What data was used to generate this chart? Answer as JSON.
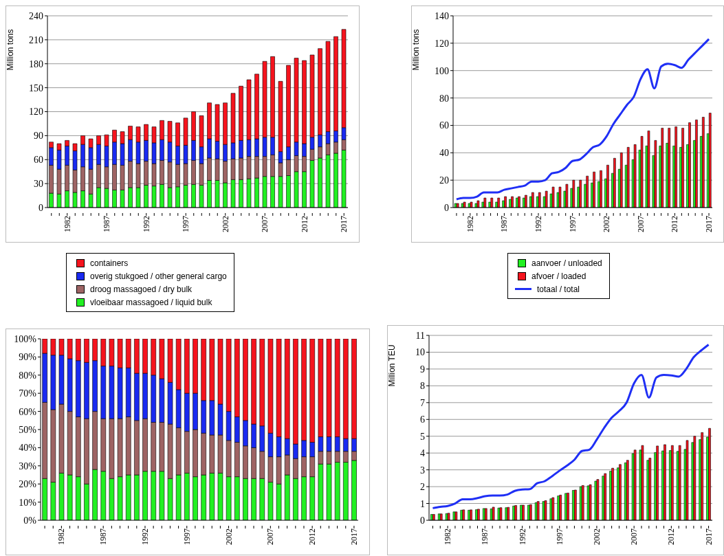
{
  "chart_data": [
    {
      "type": "bar",
      "stacked": true,
      "ylabel": "Million tons",
      "grid": "y",
      "legend": "bottom",
      "categories": [
        null,
        null,
        "1982",
        null,
        null,
        null,
        null,
        "1987",
        null,
        null,
        null,
        null,
        "1992",
        null,
        null,
        null,
        null,
        "1997",
        null,
        null,
        null,
        null,
        "2002",
        null,
        null,
        null,
        null,
        "2007",
        null,
        null,
        null,
        null,
        "2012",
        null,
        null,
        null,
        null,
        "2017"
      ],
      "ylim": [
        0,
        240
      ],
      "yticks": [
        0,
        30,
        60,
        90,
        120,
        150,
        180,
        210,
        240
      ],
      "series": [
        {
          "name": "vloeibaar massagoed / liquid bulk",
          "color": "#22f022",
          "values": [
            18,
            17,
            21,
            19,
            21,
            17,
            25,
            24,
            22,
            22,
            25,
            25,
            28,
            27,
            29,
            25,
            26,
            28,
            29,
            28,
            34,
            34,
            31,
            35,
            35,
            36,
            37,
            39,
            39,
            39,
            40,
            45,
            45,
            59,
            62,
            66,
            68,
            72
          ]
        },
        {
          "name": "droog massagoed / dry bulk",
          "color": "#9e6464",
          "values": [
            35,
            31,
            32,
            28,
            30,
            31,
            29,
            27,
            32,
            31,
            33,
            30,
            30,
            28,
            30,
            32,
            28,
            27,
            30,
            27,
            28,
            27,
            27,
            26,
            27,
            28,
            27,
            25,
            27,
            17,
            20,
            20,
            19,
            14,
            14,
            14,
            14,
            13
          ]
        },
        {
          "name": "overig stukgoed / other general cargo",
          "color": "#1a2af0",
          "values": [
            22,
            24,
            24,
            24,
            28,
            27,
            25,
            26,
            28,
            27,
            27,
            27,
            26,
            26,
            26,
            25,
            23,
            23,
            25,
            21,
            24,
            22,
            21,
            20,
            22,
            21,
            22,
            24,
            22,
            14,
            16,
            17,
            16,
            15,
            15,
            15,
            14,
            15
          ]
        },
        {
          "name": "containers",
          "color": "#f5141e",
          "values": [
            7,
            8,
            7,
            9,
            11,
            11,
            11,
            14,
            15,
            15,
            17,
            19,
            20,
            20,
            24,
            26,
            29,
            34,
            36,
            39,
            45,
            46,
            52,
            62,
            68,
            75,
            81,
            95,
            101,
            88,
            102,
            105,
            104,
            103,
            108,
            113,
            118,
            123
          ]
        }
      ]
    },
    {
      "type": "bar",
      "ylabel": "Million tons",
      "grid": "y",
      "legend": "bottom",
      "marker": "none",
      "categories": [
        null,
        null,
        "1982",
        null,
        null,
        null,
        null,
        "1987",
        null,
        null,
        null,
        null,
        "1992",
        null,
        null,
        null,
        null,
        "1997",
        null,
        null,
        null,
        null,
        "2002",
        null,
        null,
        null,
        null,
        "2007",
        null,
        null,
        null,
        null,
        "2012",
        null,
        null,
        null,
        null,
        "2017"
      ],
      "ylim": [
        0,
        140
      ],
      "yticks": [
        0,
        20,
        40,
        60,
        80,
        100,
        120,
        140
      ],
      "series": [
        {
          "name": "aanvoer / unloaded",
          "color": "#22f022",
          "values": [
            3,
            3,
            3,
            3,
            4,
            4,
            4,
            5,
            6,
            7,
            7,
            8,
            8,
            8,
            10,
            11,
            12,
            14,
            15,
            17,
            18,
            19,
            21,
            25,
            28,
            31,
            35,
            42,
            45,
            38,
            45,
            47,
            45,
            44,
            46,
            49,
            52,
            54
          ]
        },
        {
          "name": "afvoer / loaded",
          "color": "#f5141e",
          "values": [
            3,
            4,
            4,
            5,
            7,
            7,
            7,
            8,
            8,
            8,
            9,
            11,
            11,
            12,
            15,
            15,
            17,
            20,
            20,
            23,
            26,
            27,
            31,
            36,
            40,
            44,
            46,
            52,
            56,
            49,
            58,
            58,
            59,
            58,
            62,
            64,
            66,
            69
          ]
        },
        {
          "name": "totaal / total",
          "type": "line",
          "color": "#1f2ff5",
          "values": [
            6,
            7,
            7,
            8,
            11,
            11,
            11,
            13,
            14,
            15,
            16,
            19,
            19,
            20,
            25,
            26,
            29,
            34,
            35,
            39,
            44,
            46,
            52,
            61,
            68,
            75,
            81,
            94,
            101,
            87,
            103,
            105,
            104,
            102,
            108,
            113,
            118,
            123
          ]
        }
      ]
    },
    {
      "type": "bar",
      "stacked": true,
      "categories": [
        null,
        null,
        "1982",
        null,
        null,
        null,
        null,
        "1987",
        null,
        null,
        null,
        null,
        "1992",
        null,
        null,
        null,
        null,
        "1997",
        null,
        null,
        null,
        null,
        "2002",
        null,
        null,
        null,
        null,
        "2007",
        null,
        null,
        null,
        null,
        "2012",
        null,
        null,
        null,
        null,
        "2017"
      ],
      "ylim": [
        0,
        100
      ],
      "yticks": [
        {
          "value": 0,
          "label": "0%"
        },
        {
          "value": 10,
          "label": "10%"
        },
        {
          "value": 20,
          "label": "20%"
        },
        {
          "value": 30,
          "label": "30%"
        },
        {
          "value": 40,
          "label": "40%"
        },
        {
          "value": 50,
          "label": "50%"
        },
        {
          "value": 60,
          "label": "60%"
        },
        {
          "value": 70,
          "label": "70%"
        },
        {
          "value": 80,
          "label": "80%"
        },
        {
          "value": 90,
          "label": "90%"
        },
        {
          "value": 100,
          "label": "100%"
        }
      ],
      "series": [
        {
          "color": "#22f022",
          "values": [
            23,
            21,
            26,
            25,
            24,
            20,
            28,
            27,
            23,
            24,
            25,
            25,
            27,
            27,
            27,
            23,
            25,
            26,
            24,
            25,
            26,
            26,
            24,
            24,
            23,
            23,
            23,
            21,
            20,
            25,
            23,
            24,
            24,
            31,
            31,
            32,
            32,
            33
          ]
        },
        {
          "color": "#9e6464",
          "values": [
            42,
            40,
            38,
            35,
            33,
            36,
            32,
            29,
            33,
            32,
            32,
            30,
            29,
            27,
            27,
            30,
            26,
            23,
            26,
            23,
            21,
            21,
            20,
            19,
            18,
            17,
            15,
            14,
            15,
            11,
            11,
            11,
            11,
            7,
            7,
            6,
            6,
            5
          ]
        },
        {
          "color": "#1a2af0",
          "values": [
            27,
            30,
            27,
            29,
            31,
            31,
            28,
            29,
            29,
            28,
            27,
            26,
            25,
            26,
            24,
            23,
            21,
            21,
            20,
            18,
            19,
            17,
            16,
            14,
            14,
            13,
            14,
            13,
            11,
            9,
            8,
            9,
            8,
            8,
            8,
            8,
            7,
            7
          ]
        },
        {
          "color": "#f5141e",
          "values": [
            8,
            9,
            9,
            11,
            12,
            13,
            12,
            15,
            15,
            16,
            16,
            19,
            19,
            20,
            22,
            24,
            28,
            30,
            30,
            34,
            34,
            36,
            40,
            43,
            45,
            47,
            48,
            52,
            54,
            55,
            58,
            56,
            57,
            54,
            54,
            54,
            55,
            55
          ]
        }
      ]
    },
    {
      "type": "bar",
      "ylabel": "Million TEU",
      "grid": "y",
      "marker": "none",
      "categories": [
        null,
        null,
        "1982",
        null,
        null,
        null,
        null,
        "1987",
        null,
        null,
        null,
        null,
        "1992",
        null,
        null,
        null,
        null,
        "1997",
        null,
        null,
        null,
        null,
        "2002",
        null,
        null,
        null,
        null,
        "2007",
        null,
        null,
        null,
        null,
        "2012",
        null,
        null,
        null,
        null,
        "2017"
      ],
      "ylim": [
        0,
        11
      ],
      "yticks": [
        0,
        1,
        2,
        3,
        4,
        5,
        6,
        7,
        8,
        9,
        10,
        11
      ],
      "series": [
        {
          "color": "#22f022",
          "values": [
            0.35,
            0.38,
            0.4,
            0.5,
            0.6,
            0.6,
            0.63,
            0.7,
            0.68,
            0.73,
            0.75,
            0.85,
            0.9,
            0.9,
            1.05,
            1.12,
            1.28,
            1.45,
            1.6,
            1.78,
            2.0,
            2.05,
            2.33,
            2.63,
            2.92,
            3.12,
            3.42,
            3.97,
            4.18,
            3.57,
            4.03,
            4.13,
            4.15,
            4.1,
            4.22,
            4.63,
            4.8,
            4.95
          ]
        },
        {
          "color": "#f5141e",
          "values": [
            0.35,
            0.38,
            0.42,
            0.5,
            0.62,
            0.62,
            0.66,
            0.7,
            0.78,
            0.75,
            0.77,
            0.88,
            0.9,
            0.93,
            1.12,
            1.17,
            1.35,
            1.5,
            1.62,
            1.8,
            2.07,
            2.12,
            2.43,
            2.78,
            3.1,
            3.32,
            3.57,
            4.18,
            4.45,
            3.7,
            4.42,
            4.5,
            4.45,
            4.45,
            4.75,
            5.0,
            5.22,
            5.47
          ]
        },
        {
          "type": "line",
          "color": "#1f2ff5",
          "values": [
            0.72,
            0.8,
            0.85,
            1.0,
            1.25,
            1.25,
            1.32,
            1.43,
            1.47,
            1.47,
            1.53,
            1.75,
            1.83,
            1.85,
            2.2,
            2.32,
            2.62,
            2.95,
            3.25,
            3.6,
            4.12,
            4.2,
            4.8,
            5.5,
            6.1,
            6.5,
            7.0,
            8.15,
            8.65,
            7.3,
            8.5,
            8.65,
            8.62,
            8.55,
            9.0,
            9.7,
            10.1,
            10.45
          ]
        }
      ]
    }
  ]
}
